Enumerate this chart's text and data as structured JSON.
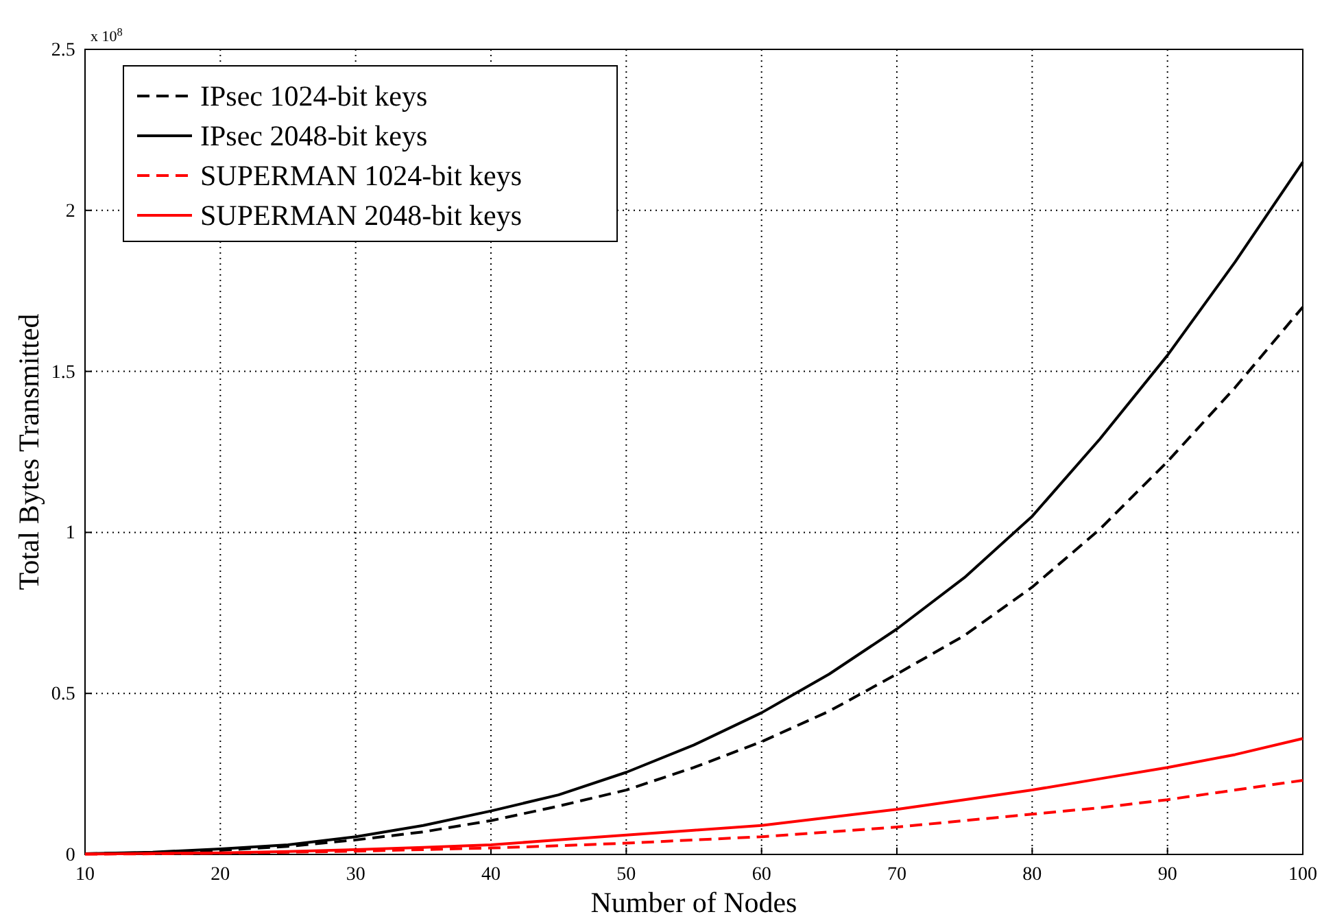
{
  "chart_data": {
    "type": "line",
    "xlabel": "Number of Nodes",
    "ylabel": "Total Bytes Transmitted",
    "annotations": [
      "x 10$^{8}$"
    ],
    "x": [
      10,
      15,
      20,
      25,
      30,
      35,
      40,
      45,
      50,
      55,
      60,
      65,
      70,
      75,
      80,
      85,
      90,
      95,
      100
    ],
    "series": [
      {
        "name": "IPsec 1024-bit keys",
        "color": "#000000",
        "line_style": "dashed",
        "values": [
          0.002,
          0.006,
          0.013,
          0.025,
          0.045,
          0.07,
          0.105,
          0.15,
          0.2,
          0.27,
          0.35,
          0.445,
          0.56,
          0.68,
          0.83,
          1.01,
          1.22,
          1.45,
          1.7
        ]
      },
      {
        "name": "IPsec 2048-bit keys",
        "color": "#000000",
        "line_style": "solid",
        "values": [
          0.002,
          0.007,
          0.017,
          0.03,
          0.055,
          0.09,
          0.135,
          0.185,
          0.255,
          0.34,
          0.44,
          0.56,
          0.7,
          0.86,
          1.05,
          1.29,
          1.55,
          1.84,
          2.15
        ]
      },
      {
        "name": "SUPERMAN 1024-bit keys",
        "color": "#ff0000",
        "line_style": "dashed",
        "values": [
          0.001,
          0.002,
          0.004,
          0.007,
          0.01,
          0.015,
          0.02,
          0.027,
          0.035,
          0.045,
          0.055,
          0.07,
          0.085,
          0.105,
          0.125,
          0.145,
          0.17,
          0.2,
          0.23
        ]
      },
      {
        "name": "SUPERMAN 2048-bit keys",
        "color": "#ff0000",
        "line_style": "solid",
        "values": [
          0.001,
          0.003,
          0.005,
          0.009,
          0.015,
          0.022,
          0.03,
          0.045,
          0.06,
          0.075,
          0.09,
          0.115,
          0.14,
          0.17,
          0.2,
          0.235,
          0.27,
          0.31,
          0.36
        ]
      }
    ],
    "xlim": [
      10,
      100
    ],
    "xticks": [
      10,
      20,
      30,
      40,
      50,
      60,
      70,
      80,
      90,
      100
    ],
    "ylim": [
      0,
      2.5
    ],
    "yticks": [
      0,
      0.5,
      1,
      1.5,
      2,
      2.5
    ],
    "grid": true,
    "legend": "top left"
  }
}
